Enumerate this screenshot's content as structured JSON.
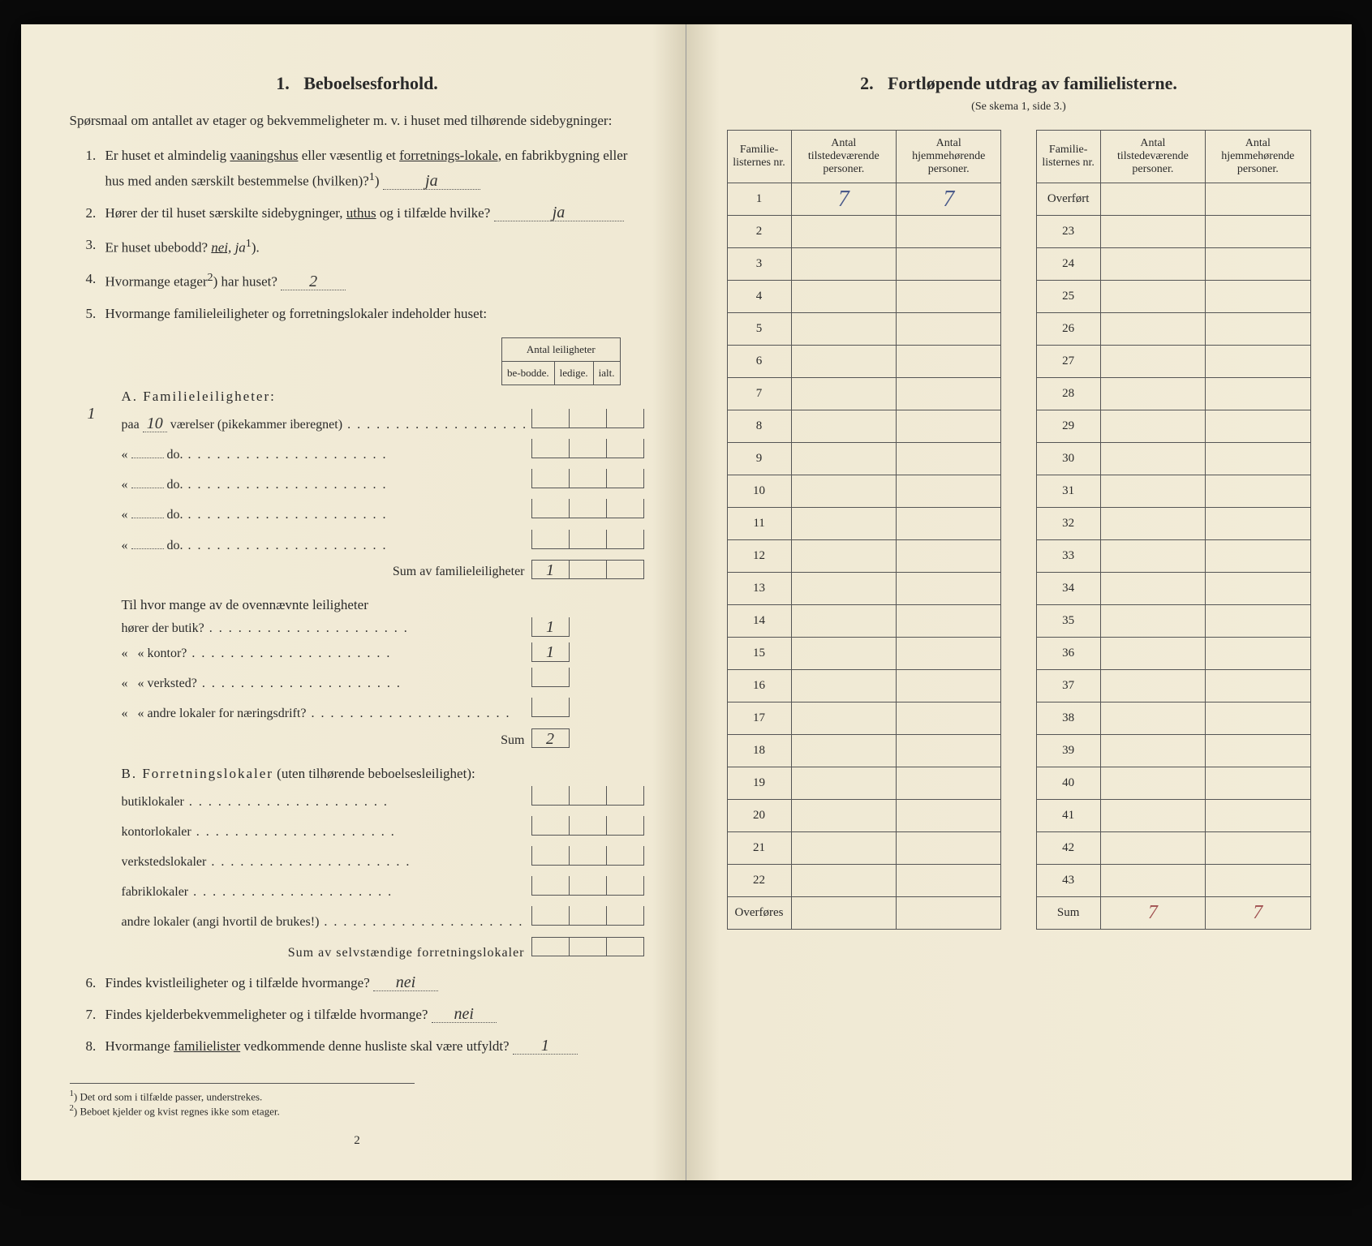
{
  "left": {
    "heading_num": "1.",
    "heading": "Beboelsesforhold.",
    "intro": "Spørsmaal om antallet av etager og bekvemmeligheter m. v. i huset med tilhørende sidebygninger:",
    "q1_a": "Er huset et almindelig ",
    "q1_u1": "vaaningshus",
    "q1_b": " eller væsentlig et ",
    "q1_u2": "forretnings-lokale,",
    "q1_c": " en fabrikbygning eller hus med anden særskilt bestemmelse (hvilken)?",
    "q1_sup": "1",
    "q1_ans": "ja",
    "q2_a": "Hører der til huset særskilte sidebygninger, ",
    "q2_u": "uthus",
    "q2_b": " og i tilfælde hvilke?",
    "q2_ans": "ja",
    "q3_a": "Er huset ubebodd? ",
    "q3_u": "nei,",
    "q3_b": " ja",
    "q3_sup": "1",
    "q4_a": "Hvormange etager",
    "q4_sup": "2",
    "q4_b": ") har huset?",
    "q4_ans": "2",
    "q5": "Hvormange familieleiligheter og forretningslokaler indeholder huset:",
    "tbl_header": "Antal leiligheter",
    "tbl_h1": "be-bodde.",
    "tbl_h2": "ledige.",
    "tbl_h3": "ialt.",
    "secA": "A. Familieleiligheter:",
    "secA_margin": "1",
    "rowA1_pre": "paa ",
    "rowA1_val": "10",
    "rowA1_post": " værelser (pikekammer iberegnet)",
    "rowA_do": "do.",
    "rowA_quote": "«",
    "sumA": "Sum av familieleiligheter",
    "sumA_val": "1",
    "blk2_intro": "Til hvor mange av de ovennævnte leiligheter",
    "blk2_r1": "hører der butik?",
    "blk2_r1_val": "1",
    "blk2_r2": "kontor?",
    "blk2_r2_val": "1",
    "blk2_r3": "verksted?",
    "blk2_r4": "andre lokaler for næringsdrift?",
    "blk2_sum": "Sum",
    "blk2_sum_val": "2",
    "secB": "B. Forretningslokaler",
    "secB_par": " (uten tilhørende beboelsesleilighet):",
    "rowB1": "butiklokaler",
    "rowB2": "kontorlokaler",
    "rowB3": "verkstedslokaler",
    "rowB4": "fabriklokaler",
    "rowB5": "andre lokaler (angi hvortil de brukes!)",
    "sumB": "Sum av selvstændige forretningslokaler",
    "q6": "Findes kvistleiligheter og i tilfælde hvormange?",
    "q6_ans": "nei",
    "q7": "Findes kjelderbekvemmeligheter og i tilfælde hvormange?",
    "q7_ans": "nei",
    "q8_a": "Hvormange ",
    "q8_u": "familielister",
    "q8_b": " vedkommende denne husliste skal være utfyldt?",
    "q8_ans": "1",
    "fn1": "Det ord som i tilfælde passer, understrekes.",
    "fn2": "Beboet kjelder og kvist regnes ikke som etager.",
    "fn1_sup": "1",
    "fn2_sup": "2",
    "page_num": "2"
  },
  "right": {
    "heading_num": "2.",
    "heading": "Fortløpende utdrag av familielisterne.",
    "subtitle": "(Se skema 1, side 3.)",
    "th1": "Familie-listernes nr.",
    "th2": "Antal tilstedeværende personer.",
    "th3": "Antal hjemmehørende personer.",
    "overfort": "Overført",
    "overfores": "Overføres",
    "sum": "Sum",
    "row1_c2": "7",
    "row1_c3": "7",
    "sum_c2": "7",
    "sum_c3": "7",
    "left_numbers": [
      "1",
      "2",
      "3",
      "4",
      "5",
      "6",
      "7",
      "8",
      "9",
      "10",
      "11",
      "12",
      "13",
      "14",
      "15",
      "16",
      "17",
      "18",
      "19",
      "20",
      "21",
      "22"
    ],
    "right_numbers": [
      "23",
      "24",
      "25",
      "26",
      "27",
      "28",
      "29",
      "30",
      "31",
      "32",
      "33",
      "34",
      "35",
      "36",
      "37",
      "38",
      "39",
      "40",
      "41",
      "42",
      "43"
    ],
    "table_colors": {
      "border": "#555555",
      "bg": "#f2ecd8"
    }
  },
  "colors": {
    "paper": "#f2ecd8",
    "ink": "#2a2a2a",
    "handwrite": "#333333",
    "handwrite_blue": "#4a5a8a",
    "handwrite_red": "#a05050",
    "black_bg": "#0a0a0a"
  }
}
